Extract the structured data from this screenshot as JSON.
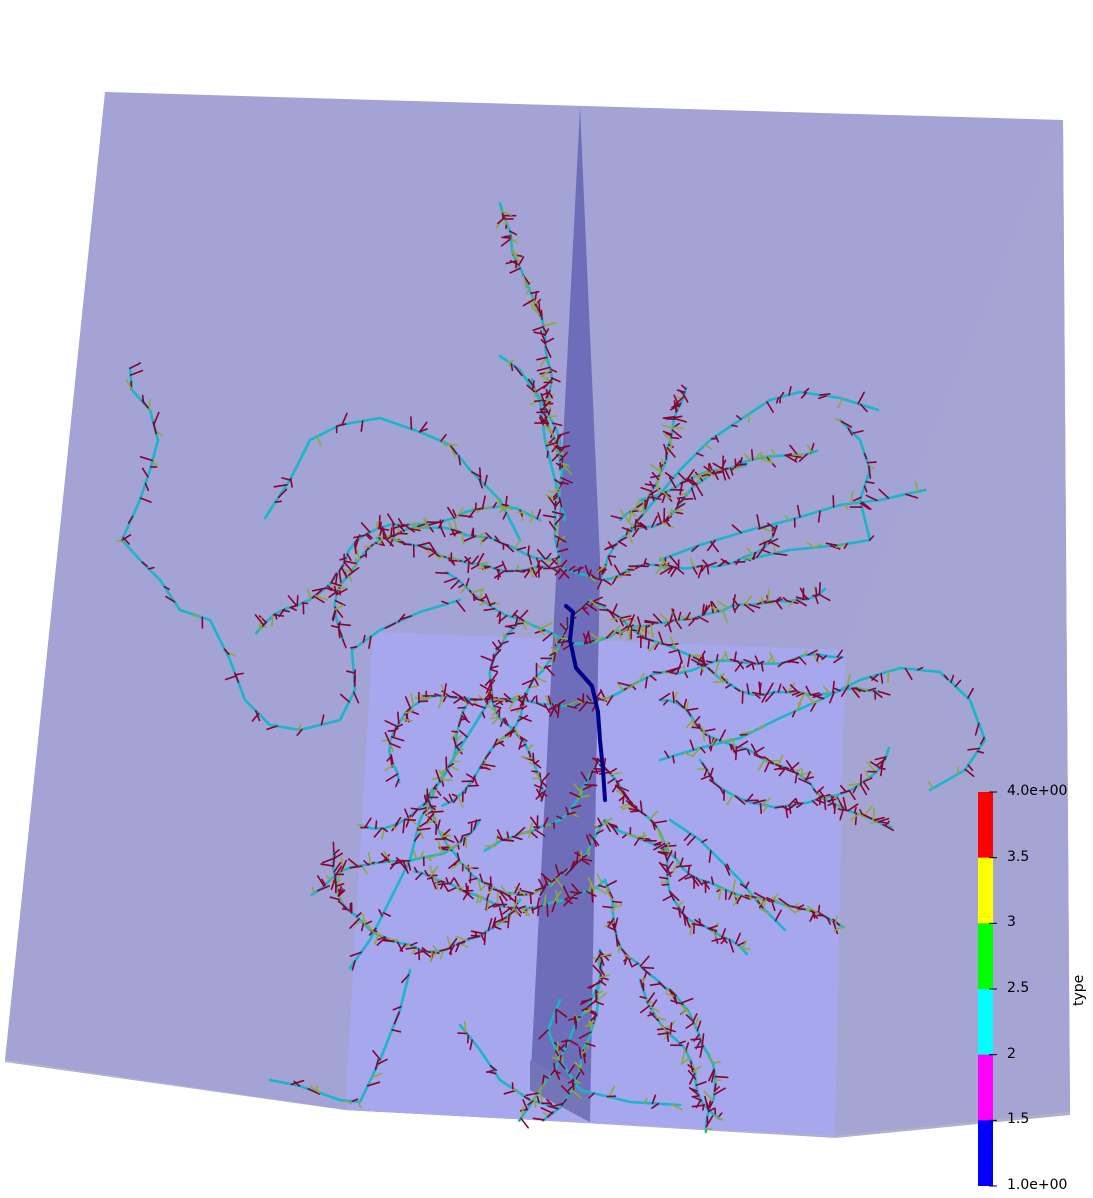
{
  "scene": {
    "box_color": "#a3a3d6",
    "inner_face_color": "#a6a6ee",
    "center_plane_color": "#6b6bb8",
    "root_main_color": "#00008b",
    "root_branch_color": "#17b6c9",
    "root_lateral_color": "#8b0030",
    "root_hair_color": "#8fa836"
  },
  "colorbar": {
    "title": "type",
    "ticks": [
      "4.0e+00",
      "3.5",
      "3",
      "2.5",
      "2",
      "1.5",
      "1.0e+00"
    ],
    "segments": [
      {
        "from": 3.5,
        "to": 4.0,
        "color": "#ff0000"
      },
      {
        "from": 3.0,
        "to": 3.5,
        "color": "#ffff00"
      },
      {
        "from": 2.5,
        "to": 3.0,
        "color": "#00ff00"
      },
      {
        "from": 2.0,
        "to": 2.5,
        "color": "#00ffff"
      },
      {
        "from": 1.5,
        "to": 2.0,
        "color": "#ff00ff"
      },
      {
        "from": 1.0,
        "to": 1.5,
        "color": "#0000ff"
      }
    ]
  }
}
